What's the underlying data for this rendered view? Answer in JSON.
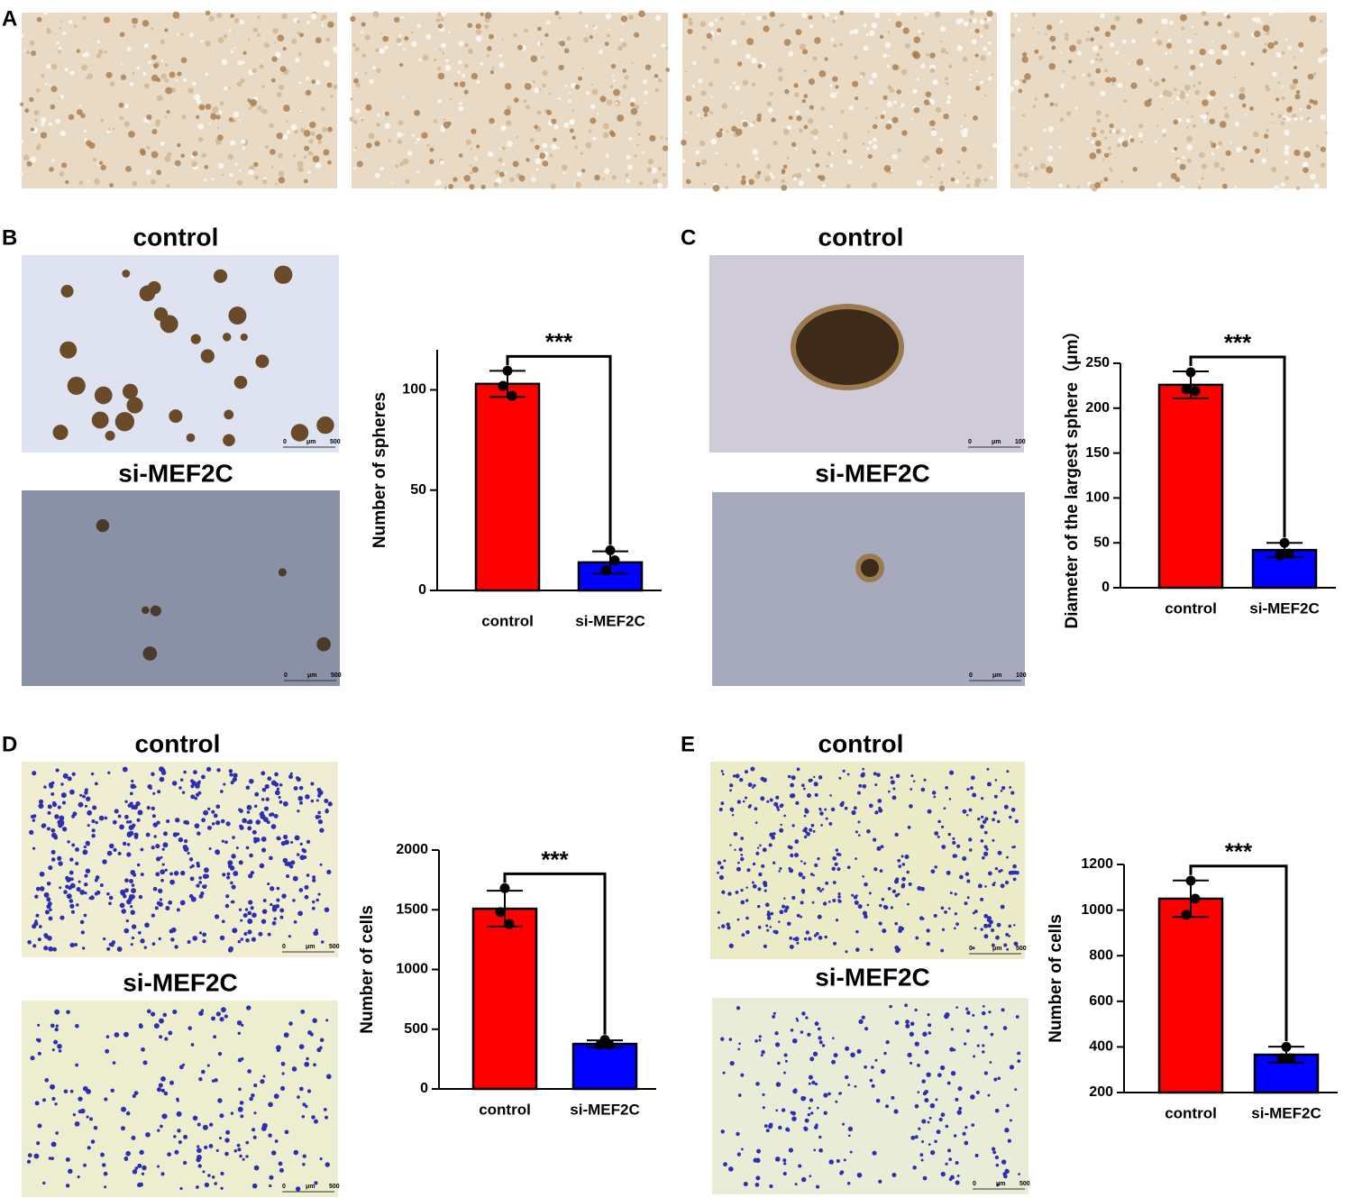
{
  "figure": {
    "panel_labels": [
      "A",
      "B",
      "C",
      "D",
      "E"
    ],
    "captions": [
      "control",
      "si-MEF2C",
      "control",
      "si-MEF2C",
      "control",
      "si-MEF2C",
      "control",
      "si-MEF2C"
    ],
    "scale_bars": [
      {
        "start": "0",
        "unit": "μm",
        "end": "500"
      },
      {
        "start": "0",
        "unit": "μm",
        "end": "500"
      },
      {
        "start": "0",
        "unit": "μm",
        "end": "100"
      },
      {
        "start": "0",
        "unit": "μm",
        "end": "100"
      },
      {
        "start": "0",
        "unit": "μm",
        "end": "500"
      },
      {
        "start": "0",
        "unit": "μm",
        "end": "500"
      },
      {
        "start": "0",
        "unit": "μm",
        "end": "500"
      },
      {
        "start": "0",
        "unit": "μm",
        "end": "500"
      }
    ]
  },
  "chart_data": [
    {
      "type": "bar",
      "ylabel": "Number of spheres",
      "categories": [
        "control",
        "si-MEF2C"
      ],
      "values": [
        103,
        14
      ],
      "errors": [
        6.5,
        5.5
      ],
      "points": [
        [
          109.5,
          102,
          97
        ],
        [
          20,
          10,
          15
        ]
      ],
      "colors": [
        "#ff0000",
        "#0000ff"
      ],
      "ylim": [
        0,
        120
      ],
      "yticks": [
        0,
        50,
        100
      ],
      "annotation": "***"
    },
    {
      "type": "bar",
      "ylabel": "Diameter of the largest sphere（μm）",
      "categories": [
        "control",
        "si-MEF2C"
      ],
      "values": [
        226,
        42
      ],
      "errors": [
        15,
        8
      ],
      "points": [
        [
          240,
          221,
          219
        ],
        [
          50,
          36,
          38
        ]
      ],
      "colors": [
        "#ff0000",
        "#0000ff"
      ],
      "ylim": [
        0,
        250
      ],
      "yticks": [
        0,
        50,
        100,
        150,
        200,
        250
      ],
      "annotation": "***"
    },
    {
      "type": "bar",
      "ylabel": "Number of cells",
      "categories": [
        "control",
        "si-MEF2C"
      ],
      "values": [
        1509,
        377
      ],
      "errors": [
        150,
        30
      ],
      "points": [
        [
          1680,
          1480,
          1380
        ],
        [
          410,
          370,
          370
        ]
      ],
      "colors": [
        "#ff0000",
        "#0000ff"
      ],
      "ylim": [
        0,
        2000
      ],
      "yticks": [
        0,
        500,
        1000,
        1500,
        2000
      ],
      "annotation": "***"
    },
    {
      "type": "bar",
      "ylabel": "Number of cells",
      "categories": [
        "control",
        "si-MEF2C"
      ],
      "values": [
        1050,
        366
      ],
      "errors": [
        80,
        35
      ],
      "points": [
        [
          1129,
          979,
          1050
        ],
        [
          400,
          350,
          350
        ]
      ],
      "colors": [
        "#ff0000",
        "#0000ff"
      ],
      "ylim": [
        200,
        1200
      ],
      "yticks": [
        200,
        400,
        600,
        800,
        1000,
        1200
      ],
      "annotation": "***"
    }
  ]
}
